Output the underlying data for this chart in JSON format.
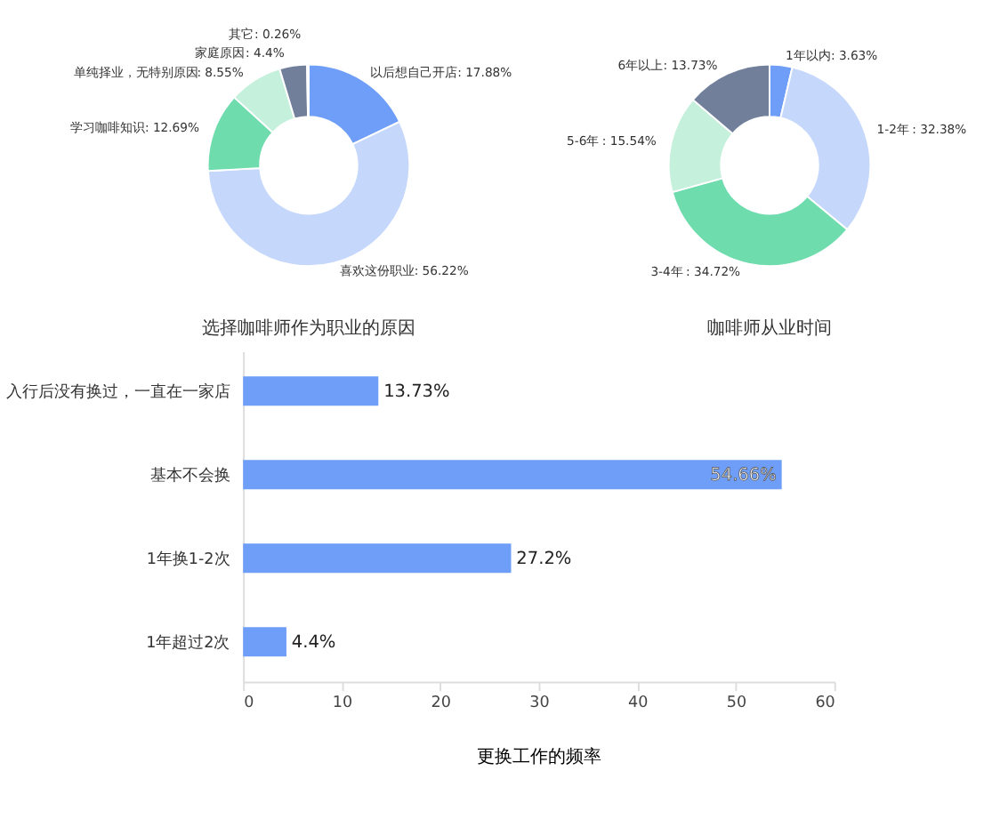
{
  "chart_data": [
    {
      "type": "donut",
      "title": "选择咖啡师作为职业的原因",
      "categories": [
        "以后想自己开店",
        "喜欢这份职业",
        "学习咖啡知识",
        "单纯择业，无特别原因",
        "家庭原因",
        "其它"
      ],
      "values": [
        17.88,
        56.22,
        12.69,
        8.55,
        4.4,
        0.26
      ],
      "colors": [
        "#6f9ef8",
        "#c5d8fb",
        "#6fdcae",
        "#c4f0dc",
        "#717f9b",
        "#dfe3ea"
      ],
      "value_labels": [
        ": 17.88%",
        ": 56.22%",
        ": 12.69%",
        ": 8.55%",
        ": 4.4%",
        ": 0.26%"
      ],
      "legend": false
    },
    {
      "type": "donut",
      "title": "咖啡师从业时间",
      "categories": [
        "1年以内",
        "1-2年",
        "3-4年",
        "5-6年",
        "6年以上"
      ],
      "values": [
        3.63,
        32.38,
        34.72,
        15.54,
        13.73
      ],
      "colors": [
        "#6f9ef8",
        "#c5d8fb",
        "#6fdcae",
        "#c4f0dc",
        "#717f9b"
      ],
      "value_labels": [
        ": 3.63%",
        ": 32.38%",
        ": 34.72%",
        ": 15.54%",
        ": 13.73%"
      ],
      "legend": false
    },
    {
      "type": "bar",
      "orientation": "horizontal",
      "xlabel": "更换工作的频率",
      "categories": [
        "入行后没有换过，一直在一家店",
        "基本不会换",
        "1年换1-2次",
        "1年超过2次"
      ],
      "values": [
        13.73,
        54.66,
        27.2,
        4.4
      ],
      "color": "#6f9ef8",
      "value_labels": [
        "13.73%",
        "54.66%",
        "27.2%",
        "4.4%"
      ],
      "xlim": [
        0,
        60
      ],
      "xticks": [
        0,
        10,
        20,
        30,
        40,
        50,
        60
      ],
      "grid": false
    }
  ]
}
